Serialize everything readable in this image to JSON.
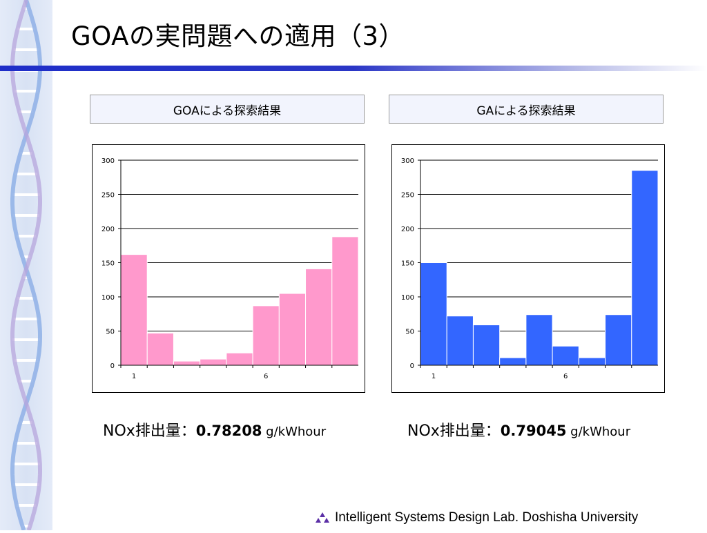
{
  "slide": {
    "title": "GOAの実問題への適用（3）",
    "footer_text": "Intelligent Systems Design Lab. Doshisha University"
  },
  "panels": [
    {
      "caption": "GOAによる探索結果",
      "nox_label": "NOx排出量：",
      "nox_value": "0.78208",
      "nox_unit": " g/kWhour",
      "color": "#ff99cc"
    },
    {
      "caption": "GAによる探索結果",
      "nox_label": "NOx排出量：",
      "nox_value": "0.79045",
      "nox_unit": " g/kWhour",
      "color": "#3366ff"
    }
  ],
  "chart_data": [
    {
      "type": "bar",
      "categories": [
        "1",
        "2",
        "3",
        "4",
        "5",
        "6",
        "7",
        "8",
        "9"
      ],
      "x_tick_labels_shown": [
        "1",
        "6"
      ],
      "values": [
        162,
        47,
        6,
        9,
        18,
        87,
        105,
        141,
        188
      ],
      "ylim": [
        0,
        300
      ],
      "yticks": [
        0,
        50,
        100,
        150,
        200,
        250,
        300
      ],
      "grid": true,
      "bar_color": "#ff99cc",
      "title": "",
      "xlabel": "",
      "ylabel": ""
    },
    {
      "type": "bar",
      "categories": [
        "1",
        "2",
        "3",
        "4",
        "5",
        "6",
        "7",
        "8",
        "9"
      ],
      "x_tick_labels_shown": [
        "1",
        "6"
      ],
      "values": [
        150,
        72,
        59,
        11,
        74,
        28,
        11,
        74,
        285
      ],
      "ylim": [
        0,
        300
      ],
      "yticks": [
        0,
        50,
        100,
        150,
        200,
        250,
        300
      ],
      "grid": true,
      "bar_color": "#3366ff",
      "title": "",
      "xlabel": "",
      "ylabel": ""
    }
  ]
}
